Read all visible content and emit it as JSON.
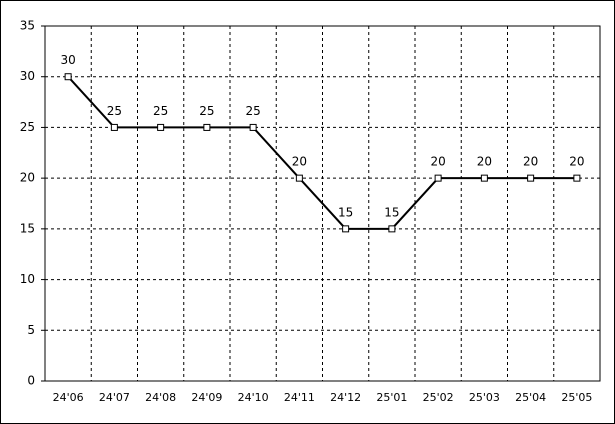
{
  "chart_data": {
    "type": "line",
    "categories": [
      "24'06",
      "24'07",
      "24'08",
      "24'09",
      "24'10",
      "24'11",
      "24'12",
      "25'01",
      "25'02",
      "25'03",
      "25'04",
      "25'05"
    ],
    "values": [
      30,
      25,
      25,
      25,
      25,
      20,
      15,
      15,
      20,
      20,
      20,
      20
    ],
    "color": "#000000",
    "ylim": [
      0,
      35
    ],
    "yticks": [
      0,
      5,
      10,
      15,
      20,
      25,
      30,
      35
    ],
    "grid": true
  }
}
